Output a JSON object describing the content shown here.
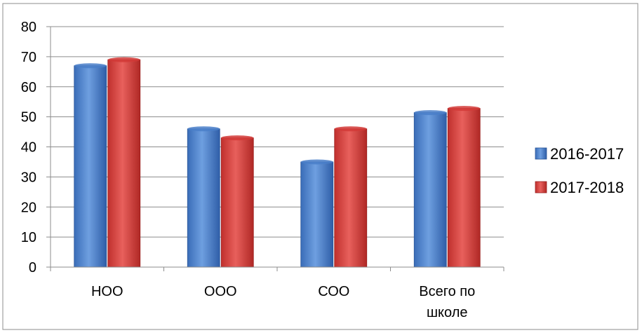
{
  "chart_data": {
    "type": "bar",
    "title": "",
    "xlabel": "",
    "ylabel": "",
    "categories": [
      "НОО",
      "ООО",
      "СОО",
      "Всего по школе"
    ],
    "category_lines": [
      [
        "НОО"
      ],
      [
        "ООО"
      ],
      [
        "СОО"
      ],
      [
        "Всего по",
        "школе"
      ]
    ],
    "series": [
      {
        "name": "2016-2017",
        "values": [
          67,
          46,
          35,
          51.4
        ],
        "color": "#4a7fc9",
        "dark": "#2a5597"
      },
      {
        "name": "2017-2018",
        "values": [
          69,
          43,
          46,
          52.8
        ],
        "color": "#d23a37",
        "dark": "#9a1f1e"
      }
    ],
    "ylim": [
      0,
      80
    ],
    "yticks": [
      0,
      10,
      20,
      30,
      40,
      50,
      60,
      70,
      80
    ],
    "grid": true,
    "legend": "right"
  }
}
